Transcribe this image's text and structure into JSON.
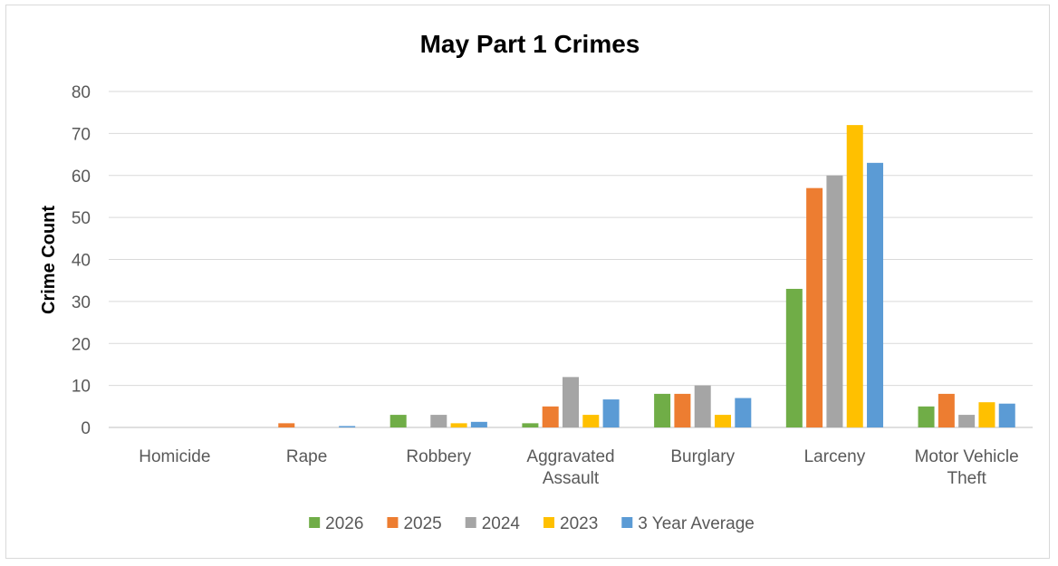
{
  "chart_data": {
    "type": "bar",
    "title": "May Part 1 Crimes",
    "xlabel": "",
    "ylabel": "Crime Count",
    "ylim": [
      0,
      80
    ],
    "yticks": [
      0,
      10,
      20,
      30,
      40,
      50,
      60,
      70,
      80
    ],
    "grid": true,
    "legend_position": "bottom",
    "categories": [
      "Homicide",
      "Rape",
      "Robbery",
      "Aggravated Assault",
      "Burglary",
      "Larceny",
      "Motor Vehicle Theft"
    ],
    "series": [
      {
        "name": "2026",
        "color": "#70ad47",
        "values": [
          0,
          0,
          3,
          1,
          8,
          33,
          5
        ]
      },
      {
        "name": "2025",
        "color": "#ed7d31",
        "values": [
          0,
          1,
          0,
          5,
          8,
          57,
          8
        ]
      },
      {
        "name": "2024",
        "color": "#a5a5a5",
        "values": [
          0,
          0,
          3,
          12,
          10,
          60,
          3
        ]
      },
      {
        "name": "2023",
        "color": "#ffc000",
        "values": [
          0,
          0,
          1,
          3,
          3,
          72,
          6
        ]
      },
      {
        "name": "3 Year Average",
        "color": "#5b9bd5",
        "values": [
          0,
          0.33,
          1.33,
          6.67,
          7,
          63,
          5.67
        ]
      }
    ]
  }
}
